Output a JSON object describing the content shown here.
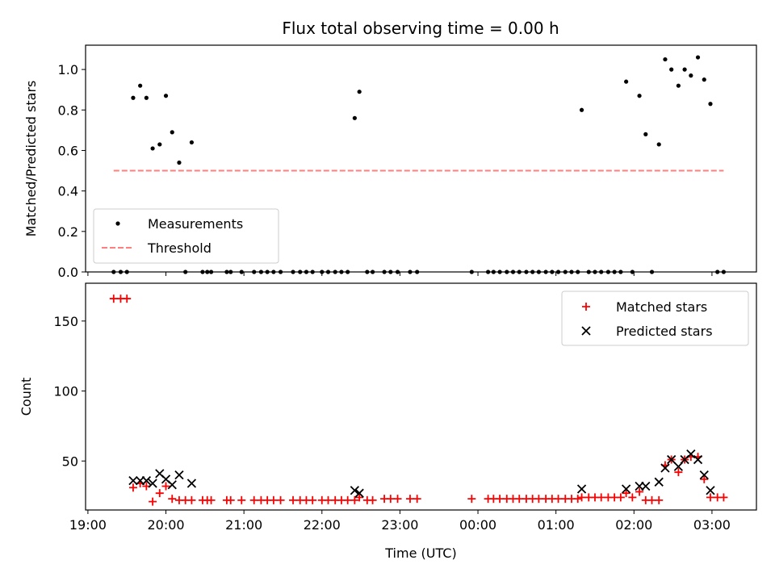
{
  "chart_data": [
    {
      "type": "scatter",
      "title": "Flux total observing time = 0.00 h",
      "xlabel": "",
      "ylabel": "Matched/Predicted stars",
      "xlim_hours": [
        18.97,
        27.57
      ],
      "ylim": [
        0,
        1.12
      ],
      "yticks": [
        0.0,
        0.2,
        0.4,
        0.6,
        0.8,
        1.0
      ],
      "ytick_labels": [
        "0.0",
        "0.2",
        "0.4",
        "0.6",
        "0.8",
        "1.0"
      ],
      "legend": {
        "placement": "lower-left",
        "entries": [
          "Measurements",
          "Threshold"
        ]
      },
      "series": [
        {
          "name": "Measurements",
          "marker": "dot",
          "color": "#000000",
          "points": [
            [
              19.33,
              0
            ],
            [
              19.42,
              0
            ],
            [
              19.5,
              0
            ],
            [
              19.58,
              0.86
            ],
            [
              19.67,
              0.92
            ],
            [
              19.75,
              0.86
            ],
            [
              19.83,
              0.61
            ],
            [
              19.92,
              0.63
            ],
            [
              20.0,
              0.87
            ],
            [
              20.08,
              0.69
            ],
            [
              20.17,
              0.54
            ],
            [
              20.25,
              0
            ],
            [
              20.33,
              0.64
            ],
            [
              20.47,
              0
            ],
            [
              20.53,
              0
            ],
            [
              20.58,
              0
            ],
            [
              20.78,
              0
            ],
            [
              20.83,
              0
            ],
            [
              20.97,
              0
            ],
            [
              21.13,
              0
            ],
            [
              21.22,
              0
            ],
            [
              21.3,
              0
            ],
            [
              21.38,
              0
            ],
            [
              21.47,
              0
            ],
            [
              21.63,
              0
            ],
            [
              21.72,
              0
            ],
            [
              21.8,
              0
            ],
            [
              21.88,
              0
            ],
            [
              22.0,
              0
            ],
            [
              22.08,
              0
            ],
            [
              22.17,
              0
            ],
            [
              22.25,
              0
            ],
            [
              22.33,
              0
            ],
            [
              22.42,
              0.76
            ],
            [
              22.48,
              0.89
            ],
            [
              22.58,
              0
            ],
            [
              22.65,
              0
            ],
            [
              22.8,
              0
            ],
            [
              22.88,
              0
            ],
            [
              22.97,
              0
            ],
            [
              23.13,
              0
            ],
            [
              23.22,
              0
            ],
            [
              23.92,
              0
            ],
            [
              24.13,
              0
            ],
            [
              24.2,
              0
            ],
            [
              24.28,
              0
            ],
            [
              24.37,
              0
            ],
            [
              24.45,
              0
            ],
            [
              24.53,
              0
            ],
            [
              24.62,
              0
            ],
            [
              24.7,
              0
            ],
            [
              24.78,
              0
            ],
            [
              24.87,
              0
            ],
            [
              24.95,
              0
            ],
            [
              25.03,
              0
            ],
            [
              25.12,
              0
            ],
            [
              25.2,
              0
            ],
            [
              25.28,
              0
            ],
            [
              25.33,
              0.8
            ],
            [
              25.42,
              0
            ],
            [
              25.5,
              0
            ],
            [
              25.58,
              0
            ],
            [
              25.67,
              0
            ],
            [
              25.75,
              0
            ],
            [
              25.83,
              0
            ],
            [
              25.9,
              0.94
            ],
            [
              25.98,
              0
            ],
            [
              26.07,
              0.87
            ],
            [
              26.15,
              0.68
            ],
            [
              26.23,
              0
            ],
            [
              26.32,
              0.63
            ],
            [
              26.4,
              1.05
            ],
            [
              26.48,
              1.0
            ],
            [
              26.57,
              0.92
            ],
            [
              26.65,
              1.0
            ],
            [
              26.73,
              0.97
            ],
            [
              26.82,
              1.06
            ],
            [
              26.9,
              0.95
            ],
            [
              26.98,
              0.83
            ],
            [
              27.07,
              0
            ],
            [
              27.15,
              0
            ]
          ]
        },
        {
          "name": "Threshold",
          "type": "line",
          "style": "dashed",
          "color": "#ff7f7f",
          "points": [
            [
              19.33,
              0.5
            ],
            [
              27.15,
              0.5
            ]
          ]
        }
      ]
    },
    {
      "type": "scatter",
      "xlabel": "Time (UTC)",
      "ylabel": "Count",
      "xlim_hours": [
        18.97,
        27.57
      ],
      "ylim": [
        15,
        177
      ],
      "yticks": [
        50,
        100,
        150
      ],
      "ytick_labels": [
        "50",
        "100",
        "150"
      ],
      "xticks_hours": [
        19,
        20,
        21,
        22,
        23,
        24,
        25,
        26,
        27
      ],
      "xtick_labels": [
        "19:00",
        "20:00",
        "21:00",
        "22:00",
        "23:00",
        "00:00",
        "01:00",
        "02:00",
        "03:00"
      ],
      "legend": {
        "placement": "top-right",
        "entries": [
          "Matched stars",
          "Predicted stars"
        ]
      },
      "series": [
        {
          "name": "Matched stars",
          "marker": "plus",
          "color": "#ff0000",
          "points": [
            [
              19.33,
              166
            ],
            [
              19.42,
              166
            ],
            [
              19.5,
              166
            ],
            [
              19.58,
              31
            ],
            [
              19.67,
              34
            ],
            [
              19.75,
              32
            ],
            [
              19.83,
              21
            ],
            [
              19.92,
              27
            ],
            [
              20.0,
              32
            ],
            [
              20.08,
              23
            ],
            [
              20.17,
              22
            ],
            [
              20.25,
              22
            ],
            [
              20.33,
              22
            ],
            [
              20.47,
              22
            ],
            [
              20.53,
              22
            ],
            [
              20.58,
              22
            ],
            [
              20.78,
              22
            ],
            [
              20.83,
              22
            ],
            [
              20.97,
              22
            ],
            [
              21.13,
              22
            ],
            [
              21.22,
              22
            ],
            [
              21.3,
              22
            ],
            [
              21.38,
              22
            ],
            [
              21.47,
              22
            ],
            [
              21.63,
              22
            ],
            [
              21.72,
              22
            ],
            [
              21.8,
              22
            ],
            [
              21.88,
              22
            ],
            [
              22.0,
              22
            ],
            [
              22.08,
              22
            ],
            [
              22.17,
              22
            ],
            [
              22.25,
              22
            ],
            [
              22.33,
              22
            ],
            [
              22.42,
              22
            ],
            [
              22.48,
              24
            ],
            [
              22.58,
              22
            ],
            [
              22.65,
              22
            ],
            [
              22.8,
              23
            ],
            [
              22.88,
              23
            ],
            [
              22.97,
              23
            ],
            [
              23.13,
              23
            ],
            [
              23.22,
              23
            ],
            [
              23.92,
              23
            ],
            [
              24.13,
              23
            ],
            [
              24.2,
              23
            ],
            [
              24.28,
              23
            ],
            [
              24.37,
              23
            ],
            [
              24.45,
              23
            ],
            [
              24.53,
              23
            ],
            [
              24.62,
              23
            ],
            [
              24.7,
              23
            ],
            [
              24.78,
              23
            ],
            [
              24.87,
              23
            ],
            [
              24.95,
              23
            ],
            [
              25.03,
              23
            ],
            [
              25.12,
              23
            ],
            [
              25.2,
              23
            ],
            [
              25.28,
              23
            ],
            [
              25.33,
              24
            ],
            [
              25.42,
              24
            ],
            [
              25.5,
              24
            ],
            [
              25.58,
              24
            ],
            [
              25.67,
              24
            ],
            [
              25.75,
              24
            ],
            [
              25.83,
              24
            ],
            [
              25.9,
              27
            ],
            [
              25.98,
              24
            ],
            [
              26.07,
              28
            ],
            [
              26.15,
              22
            ],
            [
              26.23,
              22
            ],
            [
              26.32,
              22
            ],
            [
              26.4,
              47
            ],
            [
              26.48,
              51
            ],
            [
              26.57,
              42
            ],
            [
              26.65,
              51
            ],
            [
              26.73,
              53
            ],
            [
              26.82,
              53
            ],
            [
              26.9,
              37
            ],
            [
              26.98,
              24
            ],
            [
              27.07,
              24
            ],
            [
              27.15,
              24
            ]
          ]
        },
        {
          "name": "Predicted stars",
          "marker": "x",
          "color": "#000000",
          "points": [
            [
              19.58,
              36
            ],
            [
              19.67,
              36
            ],
            [
              19.75,
              36
            ],
            [
              19.83,
              34
            ],
            [
              19.92,
              41
            ],
            [
              20.0,
              37
            ],
            [
              20.08,
              33
            ],
            [
              20.17,
              40
            ],
            [
              20.33,
              34
            ],
            [
              22.42,
              29
            ],
            [
              22.48,
              27
            ],
            [
              25.33,
              30
            ],
            [
              25.9,
              30
            ],
            [
              26.07,
              32
            ],
            [
              26.15,
              32
            ],
            [
              26.32,
              35
            ],
            [
              26.4,
              45
            ],
            [
              26.48,
              51
            ],
            [
              26.57,
              46
            ],
            [
              26.65,
              51
            ],
            [
              26.73,
              55
            ],
            [
              26.82,
              51
            ],
            [
              26.9,
              40
            ],
            [
              26.98,
              29
            ]
          ]
        }
      ]
    }
  ]
}
